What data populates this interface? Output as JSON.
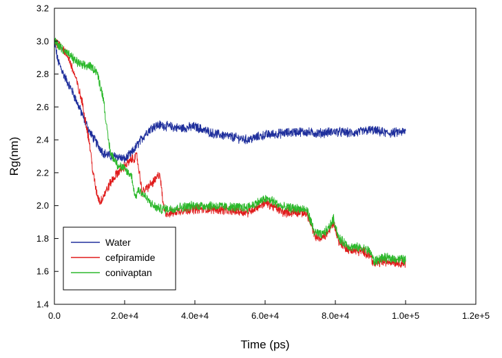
{
  "chart_data": {
    "type": "line",
    "title": "",
    "xlabel": "Time (ps)",
    "ylabel": "Rg(nm)",
    "xlim": [
      0,
      120000
    ],
    "ylim": [
      1.4,
      3.2
    ],
    "x_ticks": [
      {
        "value": 0,
        "label": "0.0"
      },
      {
        "value": 20000,
        "label": "2.0e+4"
      },
      {
        "value": 40000,
        "label": "4.0e+4"
      },
      {
        "value": 60000,
        "label": "6.0e+4"
      },
      {
        "value": 80000,
        "label": "8.0e+4"
      },
      {
        "value": 100000,
        "label": "1.0e+5"
      },
      {
        "value": 120000,
        "label": "1.2e+5"
      }
    ],
    "y_ticks": [
      {
        "value": 1.4,
        "label": "1.4"
      },
      {
        "value": 1.6,
        "label": "1.6"
      },
      {
        "value": 1.8,
        "label": "1.8"
      },
      {
        "value": 2.0,
        "label": "2.0"
      },
      {
        "value": 2.2,
        "label": "2.2"
      },
      {
        "value": 2.4,
        "label": "2.4"
      },
      {
        "value": 2.6,
        "label": "2.6"
      },
      {
        "value": 2.8,
        "label": "2.8"
      },
      {
        "value": 3.0,
        "label": "3.0"
      },
      {
        "value": 3.2,
        "label": "3.2"
      }
    ],
    "grid": false,
    "legend_position": "bottom-left",
    "noise_amplitude": 0.025,
    "series": [
      {
        "name": "Water",
        "color": "#1f2f9c",
        "x": [
          0,
          1000,
          3000,
          5000,
          8000,
          10000,
          12000,
          14000,
          16000,
          18000,
          20000,
          22000,
          24000,
          26000,
          28000,
          30000,
          33000,
          36000,
          40000,
          45000,
          50000,
          55000,
          60000,
          65000,
          70000,
          75000,
          80000,
          85000,
          90000,
          95000,
          100000
        ],
        "values": [
          3.0,
          2.88,
          2.78,
          2.7,
          2.55,
          2.45,
          2.38,
          2.32,
          2.3,
          2.3,
          2.28,
          2.32,
          2.38,
          2.44,
          2.48,
          2.49,
          2.48,
          2.47,
          2.48,
          2.44,
          2.42,
          2.4,
          2.43,
          2.44,
          2.45,
          2.44,
          2.45,
          2.44,
          2.46,
          2.44,
          2.45
        ]
      },
      {
        "name": "cefpiramide",
        "color": "#e01b1b",
        "x": [
          0,
          2000,
          4000,
          6000,
          8000,
          10000,
          11000,
          12000,
          13000,
          14000,
          16000,
          18000,
          20000,
          22000,
          23500,
          25000,
          27000,
          29000,
          30000,
          31000,
          32000,
          34000,
          36000,
          40000,
          45000,
          50000,
          55000,
          60000,
          62000,
          65000,
          70000,
          72000,
          74000,
          76000,
          78000,
          79500,
          81000,
          84000,
          88000,
          90000,
          91000,
          93000,
          96000,
          100000
        ],
        "values": [
          3.0,
          2.97,
          2.9,
          2.78,
          2.62,
          2.38,
          2.2,
          2.08,
          2.02,
          2.06,
          2.14,
          2.2,
          2.24,
          2.28,
          2.3,
          2.08,
          2.12,
          2.16,
          2.2,
          2.0,
          1.95,
          1.96,
          1.97,
          1.98,
          1.98,
          1.97,
          1.96,
          2.02,
          2.0,
          1.96,
          1.96,
          1.95,
          1.82,
          1.8,
          1.84,
          1.9,
          1.78,
          1.73,
          1.72,
          1.7,
          1.64,
          1.66,
          1.66,
          1.65
        ]
      },
      {
        "name": "conivaptan",
        "color": "#2bb82b",
        "x": [
          0,
          2000,
          4000,
          6000,
          8000,
          10000,
          12000,
          14000,
          15000,
          16000,
          18000,
          20000,
          22000,
          23000,
          24000,
          26000,
          28000,
          30000,
          33000,
          36000,
          40000,
          45000,
          50000,
          55000,
          60000,
          62000,
          65000,
          70000,
          72000,
          74000,
          76000,
          78000,
          79500,
          81000,
          84000,
          88000,
          90000,
          91000,
          93000,
          96000,
          100000
        ],
        "values": [
          3.0,
          2.96,
          2.92,
          2.88,
          2.85,
          2.85,
          2.82,
          2.65,
          2.45,
          2.32,
          2.25,
          2.22,
          2.18,
          2.05,
          2.1,
          2.05,
          2.0,
          1.98,
          1.98,
          1.99,
          2.0,
          2.0,
          1.99,
          1.99,
          2.04,
          2.03,
          1.99,
          1.98,
          1.97,
          1.84,
          1.82,
          1.86,
          1.92,
          1.8,
          1.75,
          1.74,
          1.72,
          1.66,
          1.68,
          1.68,
          1.67
        ]
      }
    ]
  }
}
